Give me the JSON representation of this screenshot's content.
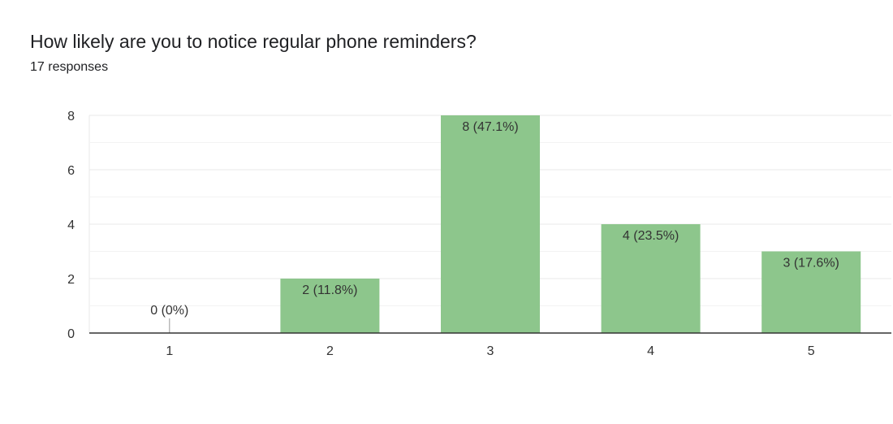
{
  "question": {
    "title": "How likely are you to notice regular phone reminders?",
    "responses": "17 responses"
  },
  "colors": {
    "bar": "#8dc68c",
    "grid": "#e8e8e8",
    "axis": "#333333",
    "text": "#202124"
  },
  "chart_data": {
    "type": "bar",
    "categories": [
      "1",
      "2",
      "3",
      "4",
      "5"
    ],
    "values": [
      0,
      2,
      8,
      4,
      3
    ],
    "data_labels": [
      "0 (0%)",
      "2 (11.8%)",
      "8 (47.1%)",
      "4 (23.5%)",
      "3 (17.6%)"
    ],
    "yticks": [
      0,
      2,
      4,
      6,
      8
    ],
    "ylim": [
      0,
      8
    ],
    "minor_gridlines": true,
    "title": "How likely are you to notice regular phone reminders?",
    "xlabel": "",
    "ylabel": ""
  }
}
